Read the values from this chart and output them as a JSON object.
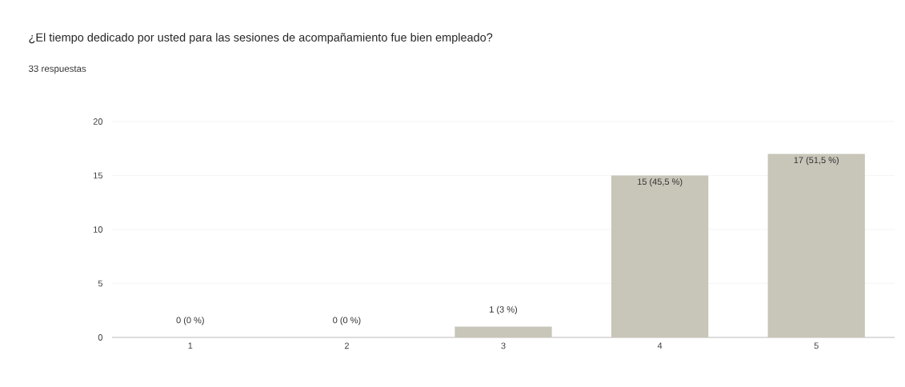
{
  "chart_data": {
    "type": "bar",
    "title": "¿El tiempo dedicado por usted para las sesiones de acompañamiento fue bien empleado?",
    "subtitle": "33 respuestas",
    "categories": [
      "1",
      "2",
      "3",
      "4",
      "5"
    ],
    "values": [
      0,
      0,
      1,
      15,
      17
    ],
    "value_labels": [
      "0 (0 %)",
      "0 (0 %)",
      "1 (3 %)",
      "15 (45,5 %)",
      "17 (51,5 %)"
    ],
    "color": "#c8c5b9",
    "ylim": [
      0,
      20
    ],
    "yticks": [
      0,
      5,
      10,
      15,
      20
    ],
    "grid": "y"
  }
}
